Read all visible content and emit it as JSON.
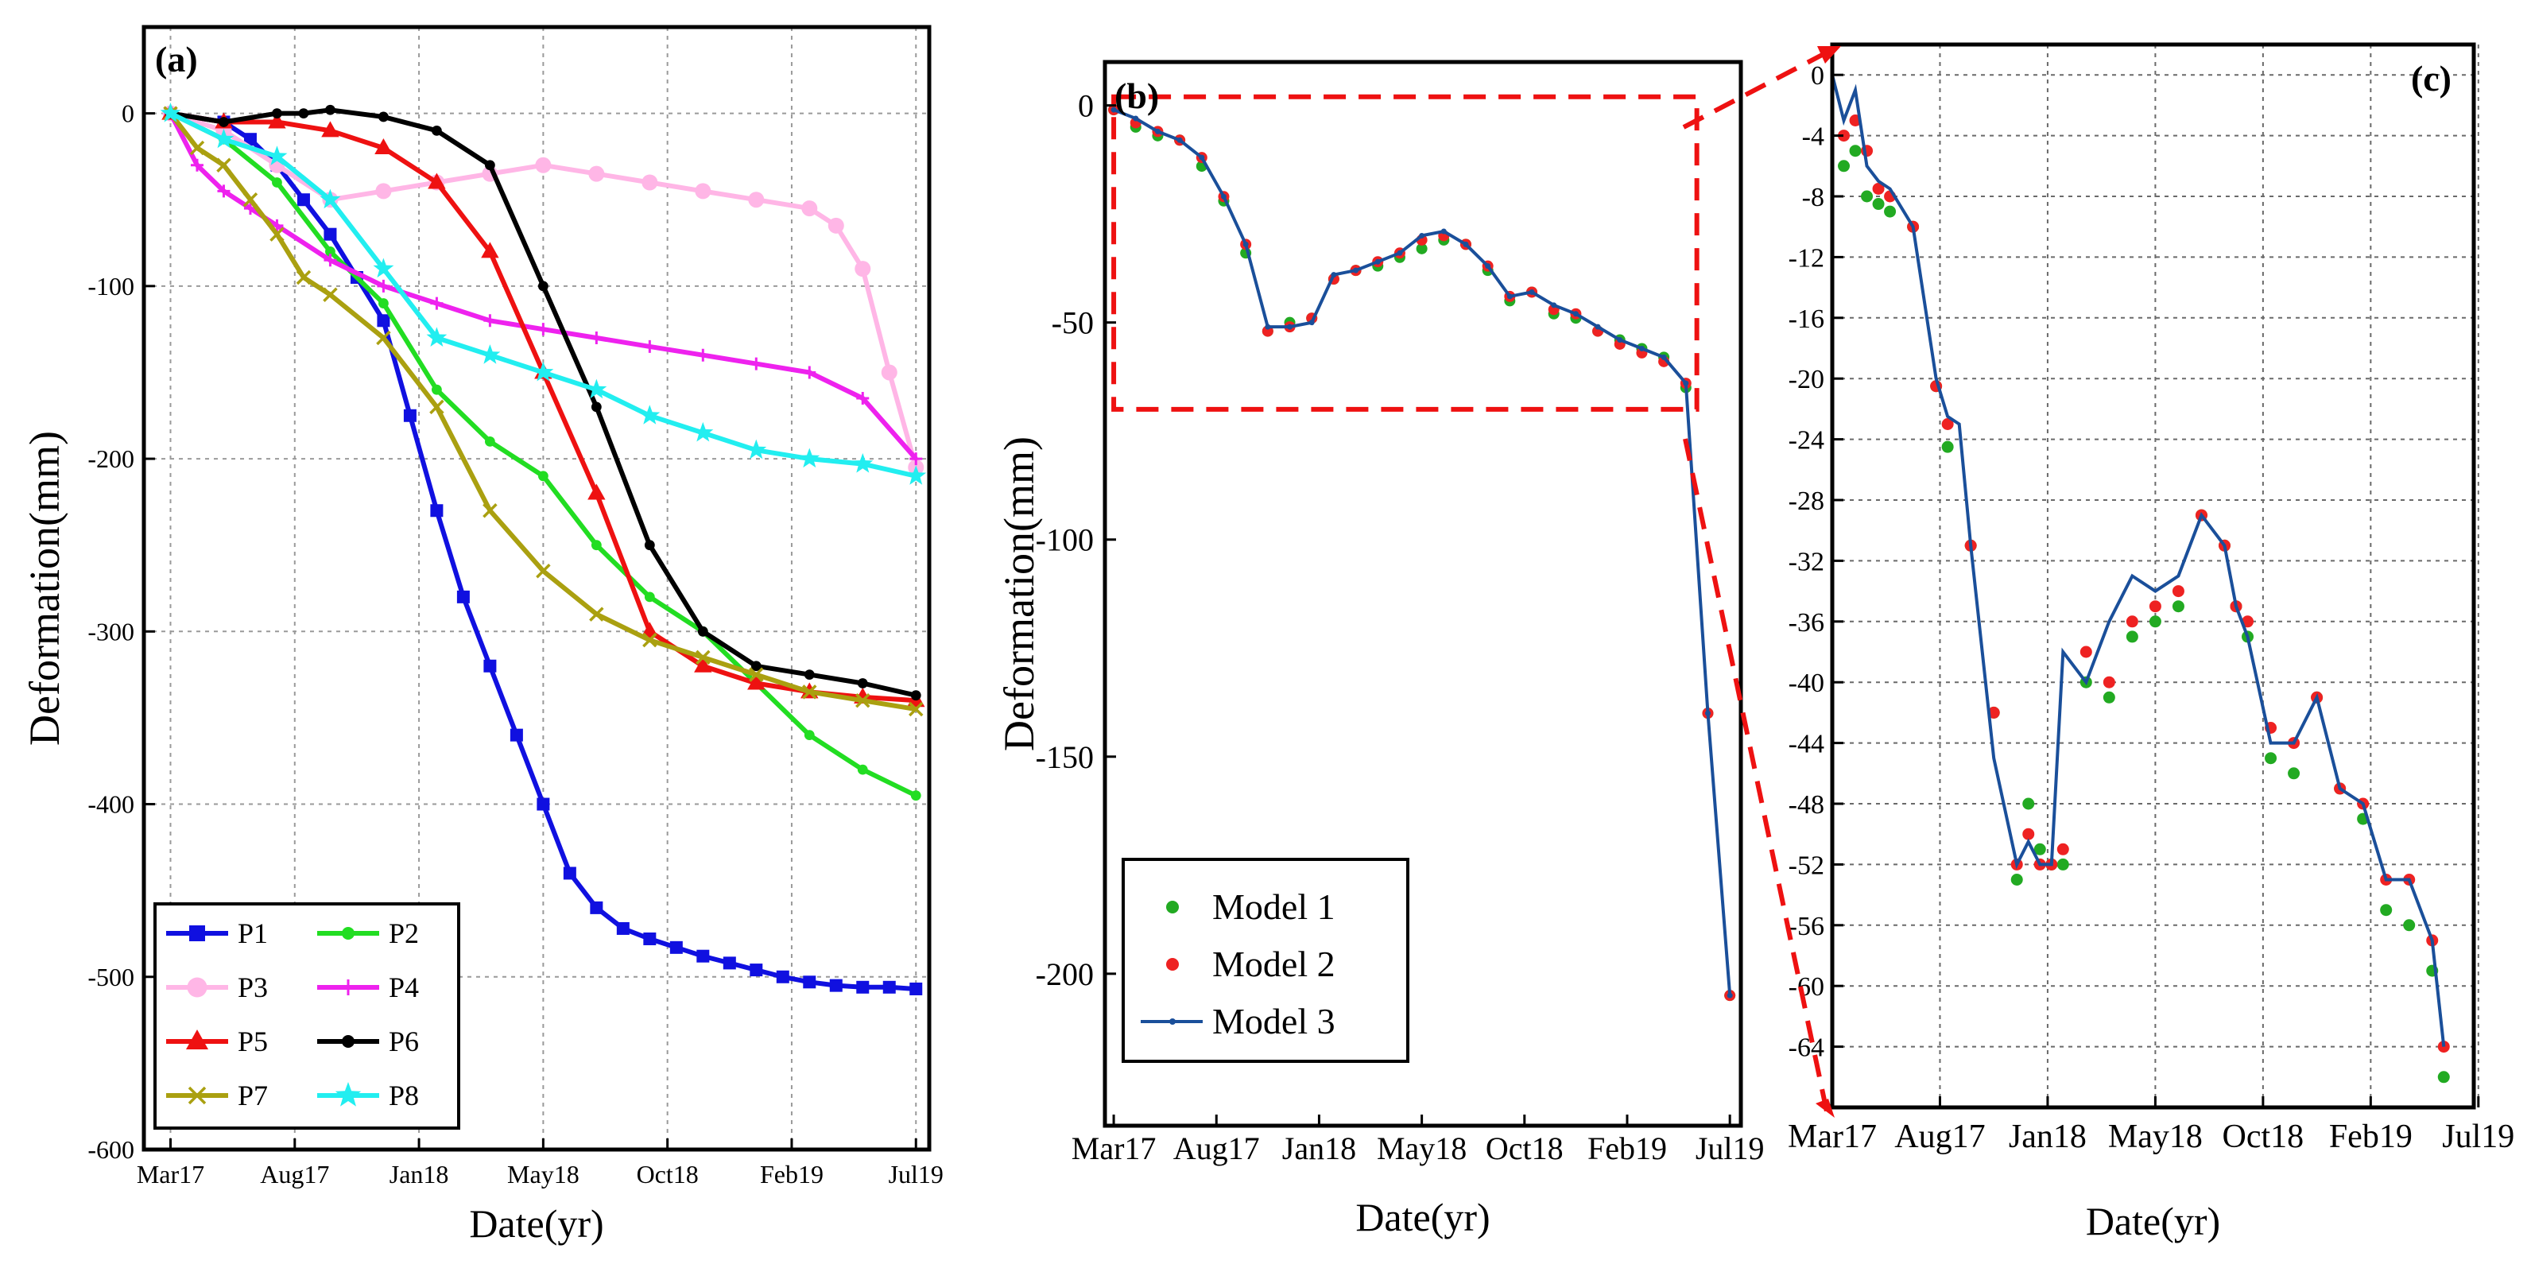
{
  "chart_data": [
    {
      "type": "line",
      "panel": "a",
      "tag": "(a)",
      "xlabel": "Date(yr)",
      "ylabel": "Deformation(mm)",
      "xticks": [
        "Mar17",
        "Aug17",
        "Jan18",
        "May18",
        "Oct18",
        "Feb19",
        "Jul19"
      ],
      "ylim": [
        -600,
        50
      ],
      "yticks": [
        0,
        -100,
        -200,
        -300,
        -400,
        -500,
        -600
      ],
      "xlim": [
        -1,
        28.5
      ],
      "x_unit": "months since Mar17",
      "grid": true,
      "legend_position": "bottom-left",
      "legend_columns": 2,
      "series": [
        {
          "name": "P1",
          "color": "#1010e0",
          "marker": "square",
          "x": [
            0,
            2,
            3,
            4,
            5,
            6,
            7,
            8,
            9,
            10,
            11,
            12,
            13,
            14,
            15,
            16,
            17,
            18,
            19,
            20,
            21,
            22,
            23,
            24,
            25,
            26,
            27,
            28
          ],
          "y": [
            0,
            -5,
            -15,
            -30,
            -50,
            -70,
            -95,
            -120,
            -175,
            -230,
            -280,
            -320,
            -360,
            -400,
            -440,
            -460,
            -472,
            -478,
            -483,
            -488,
            -492,
            -496,
            -500,
            -503,
            -505,
            -506,
            -506,
            -507
          ]
        },
        {
          "name": "P2",
          "color": "#22dd22",
          "marker": "dot",
          "x": [
            0,
            2,
            4,
            6,
            8,
            10,
            12,
            14,
            16,
            18,
            20,
            22,
            24,
            26,
            28
          ],
          "y": [
            0,
            -15,
            -40,
            -80,
            -110,
            -160,
            -190,
            -210,
            -250,
            -280,
            -300,
            -330,
            -360,
            -380,
            -395
          ]
        },
        {
          "name": "P3",
          "color": "#ffb6e6",
          "marker": "circle",
          "x": [
            0,
            2,
            4,
            6,
            8,
            10,
            12,
            14,
            16,
            18,
            20,
            22,
            24,
            25,
            26,
            27,
            28
          ],
          "y": [
            0,
            -10,
            -30,
            -50,
            -45,
            -40,
            -35,
            -30,
            -35,
            -40,
            -45,
            -50,
            -55,
            -65,
            -90,
            -150,
            -205
          ]
        },
        {
          "name": "P4",
          "color": "#ee22ee",
          "marker": "plus",
          "x": [
            0,
            1,
            2,
            3,
            4,
            6,
            8,
            10,
            12,
            14,
            16,
            18,
            20,
            22,
            24,
            26,
            28
          ],
          "y": [
            0,
            -30,
            -45,
            -55,
            -65,
            -85,
            -100,
            -110,
            -120,
            -125,
            -130,
            -135,
            -140,
            -145,
            -150,
            -165,
            -200
          ]
        },
        {
          "name": "P5",
          "color": "#ee1111",
          "marker": "triangle",
          "x": [
            0,
            2,
            4,
            6,
            8,
            10,
            12,
            14,
            16,
            18,
            20,
            22,
            24,
            26,
            28
          ],
          "y": [
            0,
            -5,
            -5,
            -10,
            -20,
            -40,
            -80,
            -150,
            -220,
            -300,
            -320,
            -330,
            -335,
            -338,
            -340
          ]
        },
        {
          "name": "P6",
          "color": "#000000",
          "marker": "dot",
          "x": [
            0,
            2,
            4,
            5,
            6,
            8,
            10,
            12,
            14,
            16,
            18,
            20,
            22,
            24,
            26,
            28
          ],
          "y": [
            0,
            -5,
            0,
            0,
            2,
            -2,
            -10,
            -30,
            -100,
            -170,
            -250,
            -300,
            -320,
            -325,
            -330,
            -337
          ]
        },
        {
          "name": "P7",
          "color": "#aaa010",
          "marker": "x",
          "x": [
            0,
            1,
            2,
            3,
            4,
            5,
            6,
            8,
            10,
            12,
            14,
            16,
            18,
            20,
            22,
            24,
            26,
            28
          ],
          "y": [
            0,
            -20,
            -30,
            -50,
            -70,
            -95,
            -105,
            -130,
            -170,
            -230,
            -265,
            -290,
            -305,
            -315,
            -325,
            -335,
            -340,
            -345
          ]
        },
        {
          "name": "P8",
          "color": "#22eef0",
          "marker": "star",
          "x": [
            0,
            2,
            4,
            6,
            8,
            10,
            12,
            14,
            16,
            18,
            20,
            22,
            24,
            26,
            28
          ],
          "y": [
            0,
            -15,
            -25,
            -50,
            -90,
            -130,
            -140,
            -150,
            -160,
            -175,
            -185,
            -195,
            -200,
            -203,
            -210
          ]
        }
      ]
    },
    {
      "type": "line",
      "panel": "b",
      "tag": "(b)",
      "xlabel": "Date(yr)",
      "ylabel": "Deformation(mm)",
      "xticks": [
        "Mar17",
        "Aug17",
        "Jan18",
        "May18",
        "Oct18",
        "Feb19",
        "Jul19"
      ],
      "ylim": [
        -235,
        10
      ],
      "yticks": [
        0,
        -50,
        -100,
        -150,
        -200
      ],
      "xlim": [
        -0.4,
        28.5
      ],
      "x_unit": "months since Mar17",
      "grid": false,
      "legend_position": "bottom-left",
      "zoom_box": {
        "x_range": [
          0,
          26.5
        ],
        "y_range": [
          -70,
          2
        ]
      },
      "legend": [
        "Model 1",
        "Model 2",
        "Model 3"
      ],
      "series": [
        {
          "name": "Model 1",
          "color": "#22aa22",
          "style": "dots",
          "x": [
            0,
            1,
            2,
            3,
            4,
            5,
            6,
            7,
            8,
            9,
            10,
            11,
            12,
            13,
            14,
            15,
            16,
            17,
            18,
            19,
            20,
            21,
            22,
            23,
            24,
            25,
            26,
            27,
            28
          ],
          "y": [
            -1,
            -5,
            -7,
            -8,
            -14,
            -22,
            -34,
            -52,
            -50,
            -49,
            -40,
            -38,
            -37,
            -35,
            -33,
            -31,
            -32,
            -38,
            -45,
            -43,
            -48,
            -49,
            -52,
            -54,
            -56,
            -58,
            -65,
            -140,
            -205
          ]
        },
        {
          "name": "Model 2",
          "color": "#ee2222",
          "style": "dots",
          "x": [
            0,
            1,
            2,
            3,
            4,
            5,
            6,
            7,
            8,
            9,
            10,
            11,
            12,
            13,
            14,
            15,
            16,
            17,
            18,
            19,
            20,
            21,
            22,
            23,
            24,
            25,
            26,
            27,
            28
          ],
          "y": [
            -1,
            -4,
            -6,
            -8,
            -12,
            -21,
            -32,
            -52,
            -51,
            -49,
            -40,
            -38,
            -36,
            -34,
            -31,
            -30,
            -32,
            -37,
            -44,
            -43,
            -47,
            -48,
            -52,
            -55,
            -57,
            -59,
            -64,
            -140,
            -205
          ]
        },
        {
          "name": "Model 3",
          "color": "#1a4f9a",
          "style": "line",
          "x": [
            0,
            1,
            2,
            3,
            4,
            5,
            6,
            7,
            8,
            9,
            10,
            11,
            12,
            13,
            14,
            15,
            16,
            17,
            18,
            19,
            20,
            21,
            22,
            23,
            24,
            25,
            26,
            27,
            28
          ],
          "y": [
            -1,
            -3,
            -6,
            -8,
            -12,
            -21,
            -32,
            -51,
            -51,
            -50,
            -39,
            -38,
            -36,
            -34,
            -30,
            -29,
            -32,
            -37,
            -44,
            -43,
            -46,
            -48,
            -51,
            -54,
            -56,
            -58,
            -64,
            -140,
            -205
          ]
        }
      ]
    },
    {
      "type": "line",
      "panel": "c",
      "tag": "(c)",
      "xlabel": "Date(yr)",
      "xticks": [
        "Mar17",
        "Aug17",
        "Jan18",
        "May18",
        "Oct18",
        "Feb19",
        "Jul19"
      ],
      "ylim": [
        -68,
        2
      ],
      "yticks": [
        0,
        -4,
        -8,
        -12,
        -16,
        -20,
        -24,
        -28,
        -32,
        -36,
        -40,
        -44,
        -48,
        -52,
        -56,
        -60,
        -64
      ],
      "xlim": [
        0,
        27.8
      ],
      "x_unit": "months since Mar17",
      "grid": true,
      "series": [
        {
          "name": "Model 1",
          "color": "#22aa22",
          "style": "dots",
          "x": [
            0.5,
            1.0,
            1.5,
            2.0,
            2.5,
            3.5,
            4.5,
            5.0,
            6.0,
            7.0,
            8.0,
            8.5,
            9.0,
            9.5,
            10.0,
            11.0,
            12.0,
            13.0,
            14.0,
            15.0,
            16.0,
            17.0,
            17.5,
            18.0,
            19.0,
            20.0,
            21.0,
            22.0,
            23.0,
            24.0,
            25.0,
            26.0,
            26.5
          ],
          "y": [
            -6,
            -5,
            -8,
            -8.5,
            -9,
            -10,
            -20.5,
            -24.5,
            -31,
            -42,
            -53,
            -48,
            -51,
            -52,
            -52,
            -40,
            -41,
            -37,
            -36,
            -35,
            -29,
            -31,
            -35,
            -37,
            -45,
            -46,
            -41,
            -47,
            -49,
            -55,
            -56,
            -59,
            -66
          ]
        },
        {
          "name": "Model 2",
          "color": "#ee2222",
          "style": "dots",
          "x": [
            0.5,
            1.0,
            1.5,
            2.0,
            2.5,
            3.5,
            4.5,
            5.0,
            6.0,
            7.0,
            8.0,
            8.5,
            9.0,
            9.5,
            10.0,
            11.0,
            12.0,
            13.0,
            14.0,
            15.0,
            16.0,
            17.0,
            17.5,
            18.0,
            19.0,
            20.0,
            21.0,
            22.0,
            23.0,
            24.0,
            25.0,
            26.0,
            26.5
          ],
          "y": [
            -4,
            -3,
            -5,
            -7.5,
            -8,
            -10,
            -20.5,
            -23,
            -31,
            -42,
            -52,
            -50,
            -52,
            -52,
            -51,
            -38,
            -40,
            -36,
            -35,
            -34,
            -29,
            -31,
            -35,
            -36,
            -43,
            -44,
            -41,
            -47,
            -48,
            -53,
            -53,
            -57,
            -64
          ]
        },
        {
          "name": "Model 3",
          "color": "#1a4f9a",
          "style": "line",
          "x": [
            0,
            0.5,
            1.0,
            1.5,
            2.0,
            2.5,
            3.5,
            4.5,
            5.0,
            5.5,
            6.0,
            7.0,
            8.0,
            8.5,
            9.0,
            9.5,
            10.0,
            11.0,
            12.0,
            13.0,
            14.0,
            15.0,
            16.0,
            17.0,
            17.5,
            18.0,
            19.0,
            20.0,
            21.0,
            22.0,
            23.0,
            24.0,
            25.0,
            26.0,
            26.5
          ],
          "y": [
            0,
            -3,
            -1,
            -6,
            -7,
            -7.5,
            -10,
            -20,
            -22.5,
            -23,
            -31,
            -45,
            -52,
            -50.5,
            -52,
            -52,
            -38,
            -40,
            -36,
            -33,
            -34,
            -33,
            -29,
            -31,
            -35,
            -37,
            -44,
            -44,
            -41,
            -47,
            -48,
            -53,
            -53,
            -57,
            -64
          ]
        }
      ]
    }
  ]
}
